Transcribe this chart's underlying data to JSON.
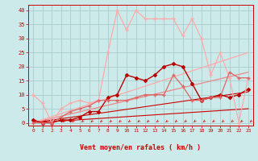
{
  "xlabel": "Vent moyen/en rafales ( km/h )",
  "background_color": "#cceaea",
  "grid_color": "#aacccc",
  "x_ticks": [
    0,
    1,
    2,
    3,
    4,
    5,
    6,
    7,
    8,
    9,
    10,
    11,
    12,
    13,
    14,
    15,
    16,
    17,
    18,
    19,
    20,
    21,
    22,
    23
  ],
  "ylim": [
    -1,
    42
  ],
  "xlim": [
    -0.5,
    23.5
  ],
  "yticks": [
    0,
    5,
    10,
    15,
    20,
    25,
    30,
    35,
    40
  ],
  "lines": [
    {
      "x": [
        0,
        23
      ],
      "y": [
        0,
        5
      ],
      "color": "#cc0000",
      "lw": 0.8,
      "marker": null,
      "ms": 0,
      "zorder": 2
    },
    {
      "x": [
        0,
        23
      ],
      "y": [
        0,
        11
      ],
      "color": "#cc0000",
      "lw": 0.8,
      "marker": null,
      "ms": 0,
      "zorder": 2
    },
    {
      "x": [
        0,
        23
      ],
      "y": [
        0,
        18
      ],
      "color": "#ee8888",
      "lw": 0.9,
      "marker": null,
      "ms": 0,
      "zorder": 2
    },
    {
      "x": [
        0,
        23
      ],
      "y": [
        0,
        25
      ],
      "color": "#ffaaaa",
      "lw": 0.9,
      "marker": null,
      "ms": 0,
      "zorder": 2
    },
    {
      "x": [
        0,
        1,
        2,
        3,
        4,
        5,
        6,
        7,
        8,
        9,
        10,
        11,
        12,
        13,
        14,
        15,
        16,
        17,
        18,
        19,
        20,
        21,
        22,
        23
      ],
      "y": [
        1,
        0,
        0,
        1,
        1,
        2,
        4,
        4,
        9,
        10,
        17,
        16,
        15,
        17,
        20,
        21,
        20,
        14,
        8,
        9,
        10,
        9,
        10,
        12
      ],
      "color": "#bb0000",
      "lw": 1.0,
      "marker": "D",
      "ms": 2.0,
      "zorder": 3
    },
    {
      "x": [
        0,
        1,
        2,
        3,
        4,
        5,
        6,
        7,
        8,
        9,
        10,
        11,
        12,
        13,
        14,
        15,
        16,
        17,
        18,
        19,
        20,
        21,
        22,
        23
      ],
      "y": [
        10,
        7,
        0,
        5,
        7,
        8,
        7,
        8,
        25,
        40,
        33,
        40,
        37,
        37,
        37,
        37,
        31,
        37,
        30,
        17,
        25,
        16,
        0,
        16
      ],
      "color": "#ffaaaa",
      "lw": 0.9,
      "marker": "+",
      "ms": 3.5,
      "zorder": 3
    },
    {
      "x": [
        0,
        1,
        2,
        3,
        4,
        5,
        6,
        7,
        8,
        9,
        10,
        11,
        12,
        13,
        14,
        15,
        16,
        17,
        18,
        19,
        20,
        21,
        22,
        23
      ],
      "y": [
        0,
        0,
        0,
        2,
        4,
        5,
        6,
        8,
        8,
        8,
        8,
        9,
        10,
        10,
        10,
        17,
        13,
        8,
        8,
        9,
        9,
        18,
        16,
        16
      ],
      "color": "#dd6666",
      "lw": 0.9,
      "marker": "+",
      "ms": 3.0,
      "zorder": 3
    }
  ],
  "arrow_color": "#cc0000",
  "tick_color": "#cc0000",
  "label_color": "#cc0000",
  "tick_fontsize": 4.5,
  "xlabel_fontsize": 6.0
}
